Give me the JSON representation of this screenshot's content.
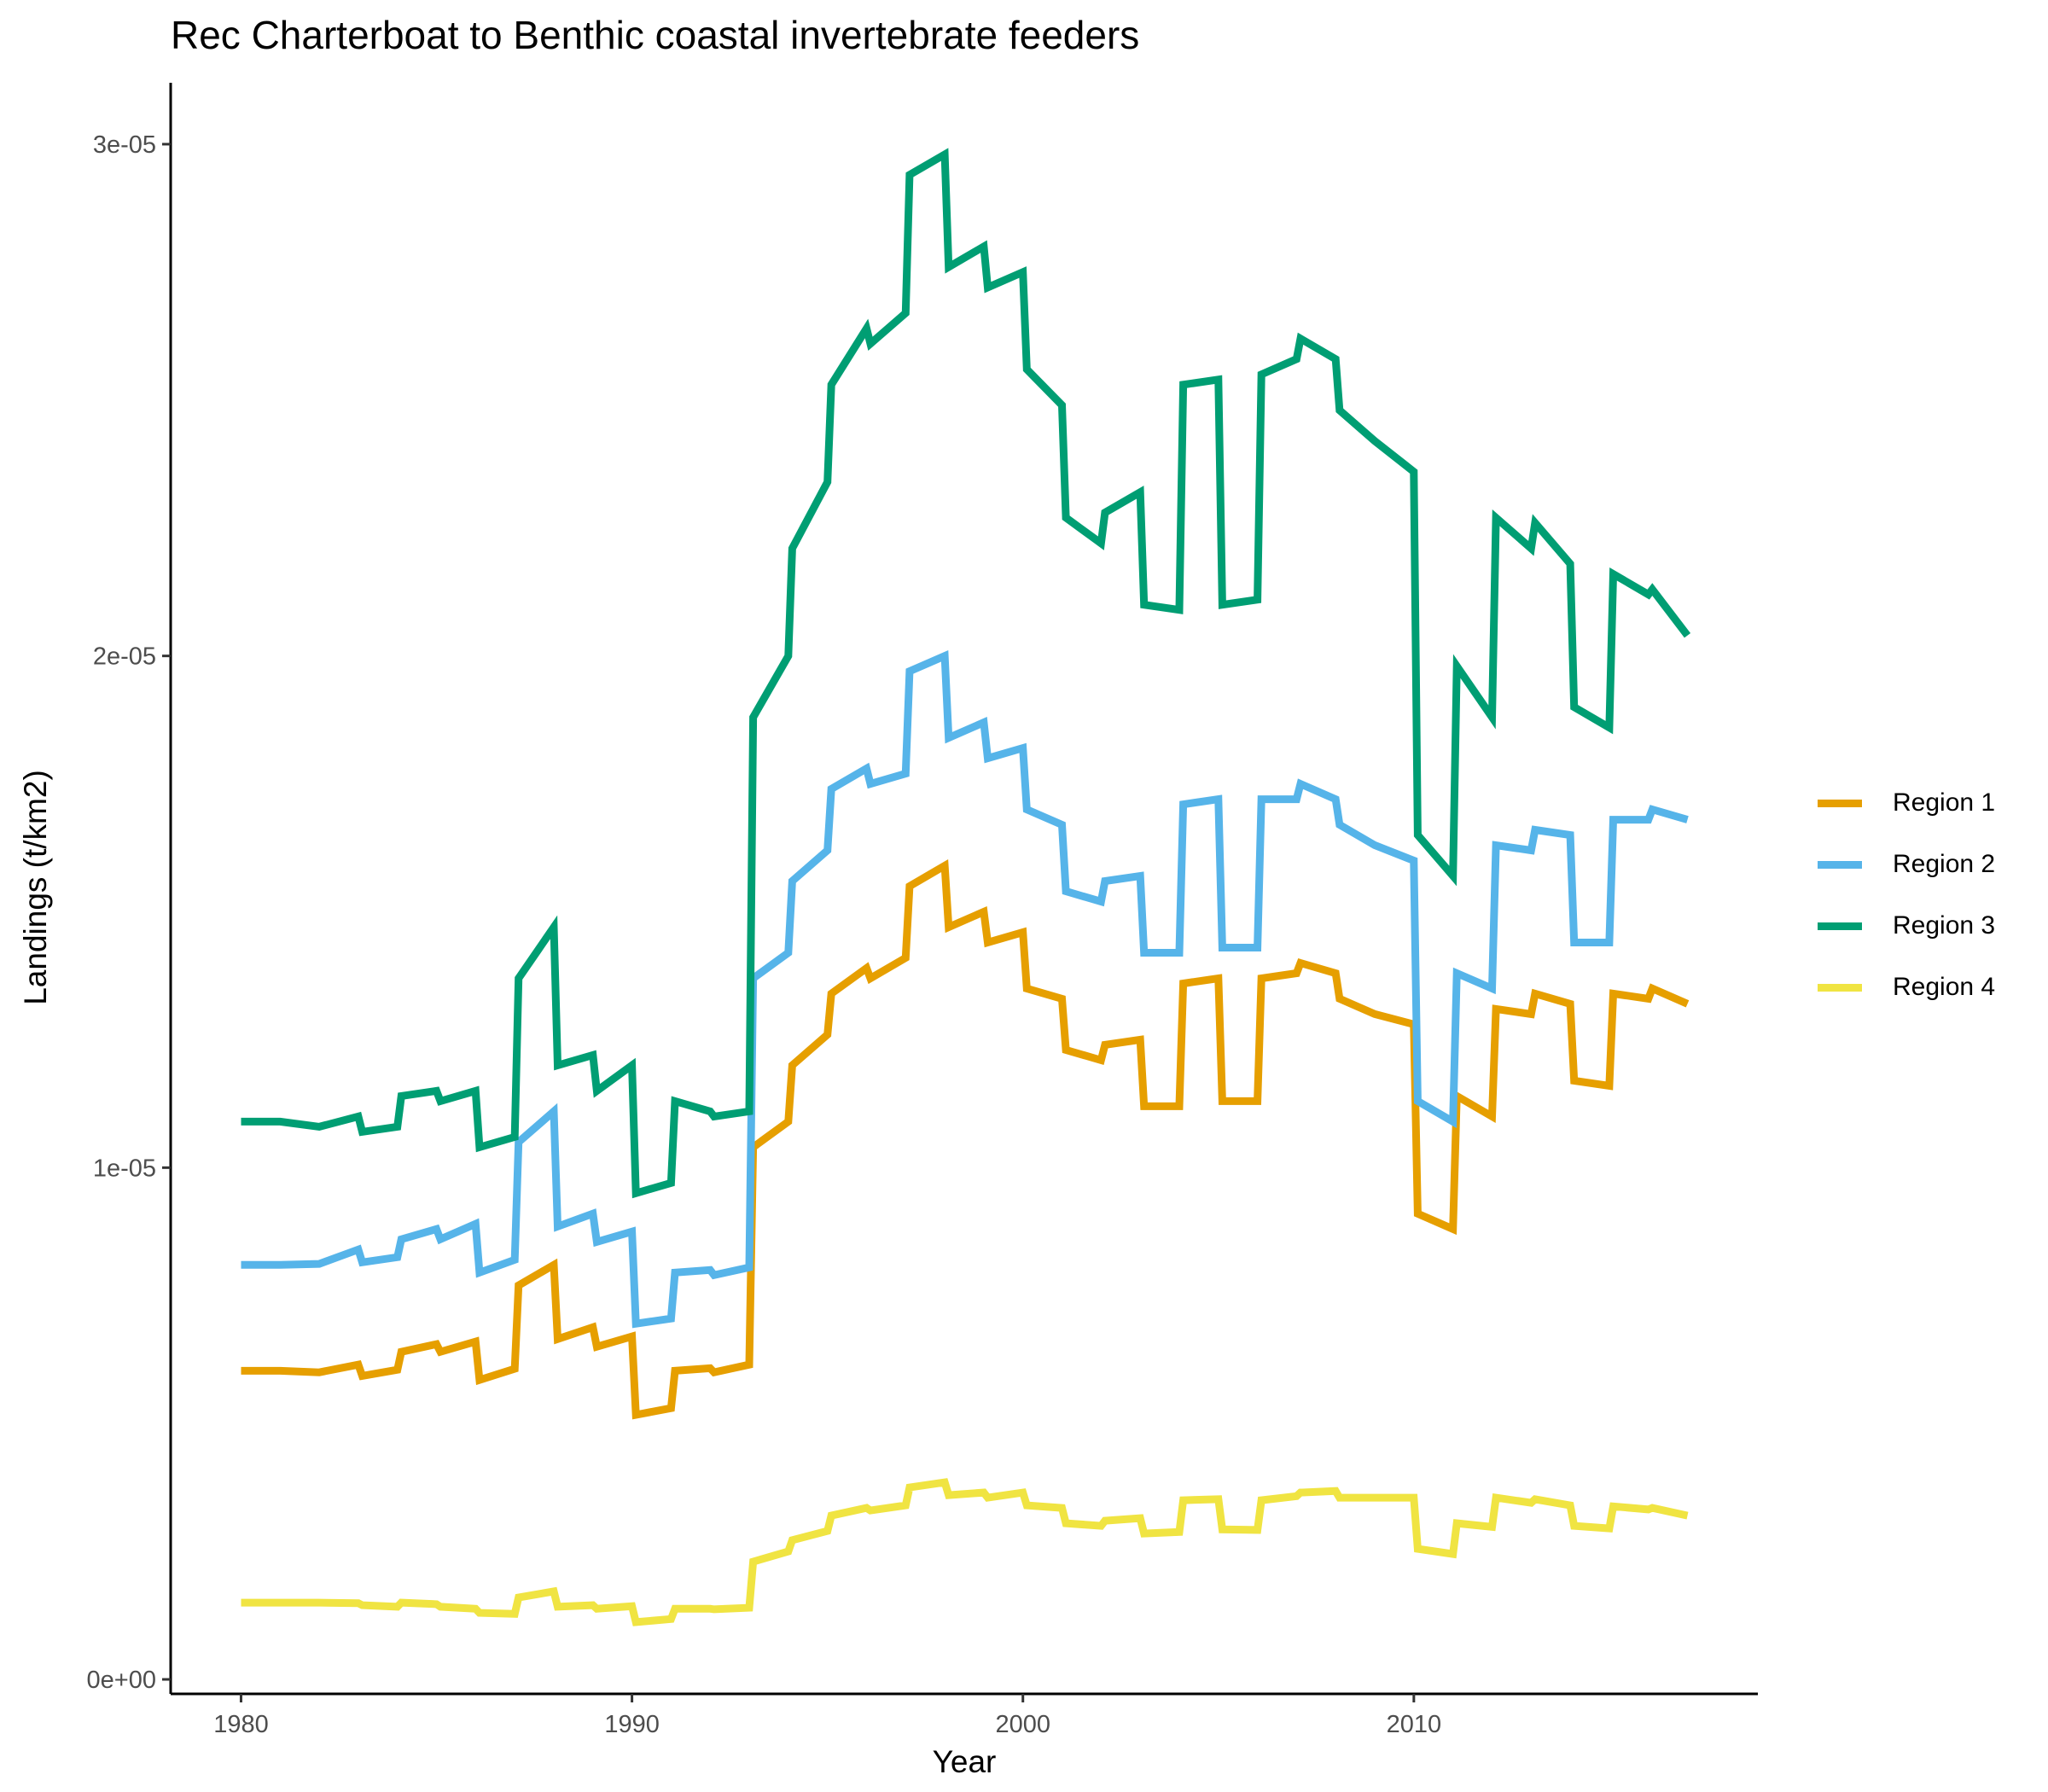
{
  "chart_data": {
    "type": "line",
    "title": "Rec Charterboat to Benthic coastal invertebrate feeders",
    "xlabel": "Year",
    "ylabel": "Landings (t/km2)",
    "xlim": [
      1978.2,
      2018.8
    ],
    "ylim": [
      -2.83e-07,
      3.12e-05
    ],
    "xticks": [
      1980,
      1990,
      2000,
      2010
    ],
    "xtick_labels": [
      "1980",
      "1990",
      "2000",
      "2010"
    ],
    "yticks": [
      0,
      1e-05,
      2e-05,
      3e-05
    ],
    "ytick_labels": [
      "0e+00",
      "1e-05",
      "2e-05",
      "3e-05"
    ],
    "grid": false,
    "legend_position": "right",
    "series": [
      {
        "name": "Region 1",
        "color": "#E69F00",
        "points": [
          [
            1980,
            6.03e-06
          ],
          [
            1981,
            6.03e-06
          ],
          [
            1982,
            6e-06
          ],
          [
            1983,
            6.15e-06
          ],
          [
            1983.1,
            5.93e-06
          ],
          [
            1984,
            6.05e-06
          ],
          [
            1984.1,
            6.4e-06
          ],
          [
            1985,
            6.55e-06
          ],
          [
            1985.1,
            6.4e-06
          ],
          [
            1986,
            6.6e-06
          ],
          [
            1986.1,
            5.85e-06
          ],
          [
            1987,
            6.07e-06
          ],
          [
            1987.1,
            7.7e-06
          ],
          [
            1988,
            8.1e-06
          ],
          [
            1988.1,
            6.65e-06
          ],
          [
            1989,
            6.88e-06
          ],
          [
            1989.1,
            6.5e-06
          ],
          [
            1990,
            6.7e-06
          ],
          [
            1990.1,
            5.17e-06
          ],
          [
            1991,
            5.3e-06
          ],
          [
            1991.1,
            6.03e-06
          ],
          [
            1992,
            6.08e-06
          ],
          [
            1992.1,
            6e-06
          ],
          [
            1993,
            6.15e-06
          ],
          [
            1993.1,
            1.04e-05
          ],
          [
            1994,
            1.09e-05
          ],
          [
            1994.1,
            1.2e-05
          ],
          [
            1995,
            1.26e-05
          ],
          [
            1995.1,
            1.34e-05
          ],
          [
            1996,
            1.39e-05
          ],
          [
            1996.1,
            1.37e-05
          ],
          [
            1997,
            1.41e-05
          ],
          [
            1997.1,
            1.55e-05
          ],
          [
            1998,
            1.59e-05
          ],
          [
            1998.1,
            1.47e-05
          ],
          [
            1999,
            1.5e-05
          ],
          [
            1999.1,
            1.44e-05
          ],
          [
            2000,
            1.46e-05
          ],
          [
            2000.1,
            1.35e-05
          ],
          [
            2001,
            1.33e-05
          ],
          [
            2001.1,
            1.23e-05
          ],
          [
            2002,
            1.21e-05
          ],
          [
            2002.1,
            1.24e-05
          ],
          [
            2003,
            1.25e-05
          ],
          [
            2003.1,
            1.12e-05
          ],
          [
            2004,
            1.12e-05
          ],
          [
            2004.1,
            1.36e-05
          ],
          [
            2005,
            1.37e-05
          ],
          [
            2005.1,
            1.13e-05
          ],
          [
            2006,
            1.13e-05
          ],
          [
            2006.1,
            1.37e-05
          ],
          [
            2007,
            1.38e-05
          ],
          [
            2007.1,
            1.4e-05
          ],
          [
            2008,
            1.38e-05
          ],
          [
            2008.1,
            1.33e-05
          ],
          [
            2009,
            1.3e-05
          ],
          [
            2010,
            1.28e-05
          ],
          [
            2010.1,
            9.1e-06
          ],
          [
            2011,
            8.8e-06
          ],
          [
            2011.1,
            1.14e-05
          ],
          [
            2012,
            1.1e-05
          ],
          [
            2012.1,
            1.31e-05
          ],
          [
            2013,
            1.3e-05
          ],
          [
            2013.1,
            1.34e-05
          ],
          [
            2014,
            1.32e-05
          ],
          [
            2014.1,
            1.17e-05
          ],
          [
            2015,
            1.16e-05
          ],
          [
            2015.1,
            1.34e-05
          ],
          [
            2016,
            1.33e-05
          ],
          [
            2016.1,
            1.35e-05
          ],
          [
            2017,
            1.32e-05
          ]
        ]
      },
      {
        "name": "Region 2",
        "color": "#56B4E9",
        "points": [
          [
            1980,
            8.1e-06
          ],
          [
            1981,
            8.1e-06
          ],
          [
            1982,
            8.12e-06
          ],
          [
            1983,
            8.4e-06
          ],
          [
            1983.1,
            8.15e-06
          ],
          [
            1984,
            8.25e-06
          ],
          [
            1984.1,
            8.6e-06
          ],
          [
            1985,
            8.8e-06
          ],
          [
            1985.1,
            8.6e-06
          ],
          [
            1986,
            8.9e-06
          ],
          [
            1986.1,
            7.95e-06
          ],
          [
            1987,
            8.2e-06
          ],
          [
            1987.1,
            1.05e-05
          ],
          [
            1988,
            1.11e-05
          ],
          [
            1988.1,
            8.85e-06
          ],
          [
            1989,
            9.1e-06
          ],
          [
            1989.1,
            8.55e-06
          ],
          [
            1990,
            8.75e-06
          ],
          [
            1990.1,
            6.95e-06
          ],
          [
            1991,
            7.05e-06
          ],
          [
            1991.1,
            7.95e-06
          ],
          [
            1992,
            8e-06
          ],
          [
            1992.1,
            7.9e-06
          ],
          [
            1993,
            8.05e-06
          ],
          [
            1993.1,
            1.37e-05
          ],
          [
            1994,
            1.42e-05
          ],
          [
            1994.1,
            1.56e-05
          ],
          [
            1995,
            1.62e-05
          ],
          [
            1995.1,
            1.74e-05
          ],
          [
            1996,
            1.78e-05
          ],
          [
            1996.1,
            1.75e-05
          ],
          [
            1997,
            1.77e-05
          ],
          [
            1997.1,
            1.97e-05
          ],
          [
            1998,
            2e-05
          ],
          [
            1998.1,
            1.84e-05
          ],
          [
            1999,
            1.87e-05
          ],
          [
            1999.1,
            1.8e-05
          ],
          [
            2000,
            1.82e-05
          ],
          [
            2000.1,
            1.7e-05
          ],
          [
            2001,
            1.67e-05
          ],
          [
            2001.1,
            1.54e-05
          ],
          [
            2002,
            1.52e-05
          ],
          [
            2002.1,
            1.56e-05
          ],
          [
            2003,
            1.57e-05
          ],
          [
            2003.1,
            1.42e-05
          ],
          [
            2004,
            1.42e-05
          ],
          [
            2004.1,
            1.71e-05
          ],
          [
            2005,
            1.72e-05
          ],
          [
            2005.1,
            1.43e-05
          ],
          [
            2006,
            1.43e-05
          ],
          [
            2006.1,
            1.72e-05
          ],
          [
            2007,
            1.72e-05
          ],
          [
            2007.1,
            1.75e-05
          ],
          [
            2008,
            1.72e-05
          ],
          [
            2008.1,
            1.67e-05
          ],
          [
            2009,
            1.63e-05
          ],
          [
            2010,
            1.6e-05
          ],
          [
            2010.1,
            1.13e-05
          ],
          [
            2011,
            1.09e-05
          ],
          [
            2011.1,
            1.38e-05
          ],
          [
            2012,
            1.35e-05
          ],
          [
            2012.1,
            1.63e-05
          ],
          [
            2013,
            1.62e-05
          ],
          [
            2013.1,
            1.66e-05
          ],
          [
            2014,
            1.65e-05
          ],
          [
            2014.1,
            1.44e-05
          ],
          [
            2015,
            1.44e-05
          ],
          [
            2015.1,
            1.68e-05
          ],
          [
            2016,
            1.68e-05
          ],
          [
            2016.1,
            1.7e-05
          ],
          [
            2017,
            1.68e-05
          ]
        ]
      },
      {
        "name": "Region 3",
        "color": "#009E73",
        "points": [
          [
            1980,
            1.09e-05
          ],
          [
            1981,
            1.09e-05
          ],
          [
            1982,
            1.08e-05
          ],
          [
            1983,
            1.1e-05
          ],
          [
            1983.1,
            1.07e-05
          ],
          [
            1984,
            1.08e-05
          ],
          [
            1984.1,
            1.14e-05
          ],
          [
            1985,
            1.15e-05
          ],
          [
            1985.1,
            1.13e-05
          ],
          [
            1986,
            1.15e-05
          ],
          [
            1986.1,
            1.04e-05
          ],
          [
            1987,
            1.06e-05
          ],
          [
            1987.1,
            1.37e-05
          ],
          [
            1988,
            1.47e-05
          ],
          [
            1988.1,
            1.2e-05
          ],
          [
            1989,
            1.22e-05
          ],
          [
            1989.1,
            1.15e-05
          ],
          [
            1990,
            1.2e-05
          ],
          [
            1990.1,
            9.5e-06
          ],
          [
            1991,
            9.7e-06
          ],
          [
            1991.1,
            1.13e-05
          ],
          [
            1992,
            1.11e-05
          ],
          [
            1992.1,
            1.1e-05
          ],
          [
            1993,
            1.11e-05
          ],
          [
            1993.1,
            1.88e-05
          ],
          [
            1994,
            2e-05
          ],
          [
            1994.1,
            2.21e-05
          ],
          [
            1995,
            2.34e-05
          ],
          [
            1995.1,
            2.53e-05
          ],
          [
            1996,
            2.64e-05
          ],
          [
            1996.1,
            2.61e-05
          ],
          [
            1997,
            2.67e-05
          ],
          [
            1997.1,
            2.94e-05
          ],
          [
            1998,
            2.98e-05
          ],
          [
            1998.1,
            2.76e-05
          ],
          [
            1999,
            2.8e-05
          ],
          [
            1999.1,
            2.72e-05
          ],
          [
            2000,
            2.75e-05
          ],
          [
            2000.1,
            2.56e-05
          ],
          [
            2001,
            2.49e-05
          ],
          [
            2001.1,
            2.27e-05
          ],
          [
            2002,
            2.22e-05
          ],
          [
            2002.1,
            2.28e-05
          ],
          [
            2003,
            2.32e-05
          ],
          [
            2003.1,
            2.1e-05
          ],
          [
            2004,
            2.09e-05
          ],
          [
            2004.1,
            2.53e-05
          ],
          [
            2005,
            2.54e-05
          ],
          [
            2005.1,
            2.1e-05
          ],
          [
            2006,
            2.11e-05
          ],
          [
            2006.1,
            2.55e-05
          ],
          [
            2007,
            2.58e-05
          ],
          [
            2007.1,
            2.62e-05
          ],
          [
            2008,
            2.58e-05
          ],
          [
            2008.1,
            2.48e-05
          ],
          [
            2009,
            2.42e-05
          ],
          [
            2010,
            2.36e-05
          ],
          [
            2010.1,
            1.65e-05
          ],
          [
            2011,
            1.57e-05
          ],
          [
            2011.1,
            1.98e-05
          ],
          [
            2012,
            1.88e-05
          ],
          [
            2012.1,
            2.27e-05
          ],
          [
            2013,
            2.21e-05
          ],
          [
            2013.1,
            2.26e-05
          ],
          [
            2014,
            2.18e-05
          ],
          [
            2014.1,
            1.9e-05
          ],
          [
            2015,
            1.86e-05
          ],
          [
            2015.1,
            2.16e-05
          ],
          [
            2016,
            2.12e-05
          ],
          [
            2016.1,
            2.13e-05
          ],
          [
            2017,
            2.04e-05
          ]
        ]
      },
      {
        "name": "Region 4",
        "color": "#F0E442",
        "points": [
          [
            1980,
            1.5e-06
          ],
          [
            1981,
            1.5e-06
          ],
          [
            1982,
            1.5e-06
          ],
          [
            1983,
            1.49e-06
          ],
          [
            1983.1,
            1.45e-06
          ],
          [
            1984,
            1.42e-06
          ],
          [
            1984.1,
            1.5e-06
          ],
          [
            1985,
            1.47e-06
          ],
          [
            1985.1,
            1.42e-06
          ],
          [
            1986,
            1.38e-06
          ],
          [
            1986.1,
            1.3e-06
          ],
          [
            1987,
            1.28e-06
          ],
          [
            1987.1,
            1.6e-06
          ],
          [
            1988,
            1.72e-06
          ],
          [
            1988.1,
            1.42e-06
          ],
          [
            1989,
            1.45e-06
          ],
          [
            1989.1,
            1.38e-06
          ],
          [
            1990,
            1.43e-06
          ],
          [
            1990.1,
            1.12e-06
          ],
          [
            1991,
            1.18e-06
          ],
          [
            1991.1,
            1.38e-06
          ],
          [
            1992,
            1.38e-06
          ],
          [
            1992.1,
            1.37e-06
          ],
          [
            1993,
            1.4e-06
          ],
          [
            1993.1,
            2.3e-06
          ],
          [
            1994,
            2.5e-06
          ],
          [
            1994.1,
            2.72e-06
          ],
          [
            1995,
            2.9e-06
          ],
          [
            1995.1,
            3.2e-06
          ],
          [
            1996,
            3.35e-06
          ],
          [
            1996.1,
            3.3e-06
          ],
          [
            1997,
            3.4e-06
          ],
          [
            1997.1,
            3.75e-06
          ],
          [
            1998,
            3.85e-06
          ],
          [
            1998.1,
            3.6e-06
          ],
          [
            1999,
            3.65e-06
          ],
          [
            1999.1,
            3.55e-06
          ],
          [
            2000,
            3.65e-06
          ],
          [
            2000.1,
            3.4e-06
          ],
          [
            2001,
            3.35e-06
          ],
          [
            2001.1,
            3.05e-06
          ],
          [
            2002,
            3e-06
          ],
          [
            2002.1,
            3.1e-06
          ],
          [
            2003,
            3.15e-06
          ],
          [
            2003.1,
            2.85e-06
          ],
          [
            2004,
            2.88e-06
          ],
          [
            2004.1,
            3.5e-06
          ],
          [
            2005,
            3.52e-06
          ],
          [
            2005.1,
            2.93e-06
          ],
          [
            2006,
            2.92e-06
          ],
          [
            2006.1,
            3.5e-06
          ],
          [
            2007,
            3.58e-06
          ],
          [
            2007.1,
            3.65e-06
          ],
          [
            2008,
            3.68e-06
          ],
          [
            2008.1,
            3.55e-06
          ],
          [
            2009,
            3.55e-06
          ],
          [
            2010,
            3.55e-06
          ],
          [
            2010.1,
            2.55e-06
          ],
          [
            2011,
            2.45e-06
          ],
          [
            2011.1,
            3.05e-06
          ],
          [
            2012,
            2.98e-06
          ],
          [
            2012.1,
            3.55e-06
          ],
          [
            2013,
            3.45e-06
          ],
          [
            2013.1,
            3.52e-06
          ],
          [
            2014,
            3.4e-06
          ],
          [
            2014.1,
            3e-06
          ],
          [
            2015,
            2.95e-06
          ],
          [
            2015.1,
            3.38e-06
          ],
          [
            2016,
            3.32e-06
          ],
          [
            2016.1,
            3.35e-06
          ],
          [
            2017,
            3.2e-06
          ]
        ]
      }
    ]
  }
}
